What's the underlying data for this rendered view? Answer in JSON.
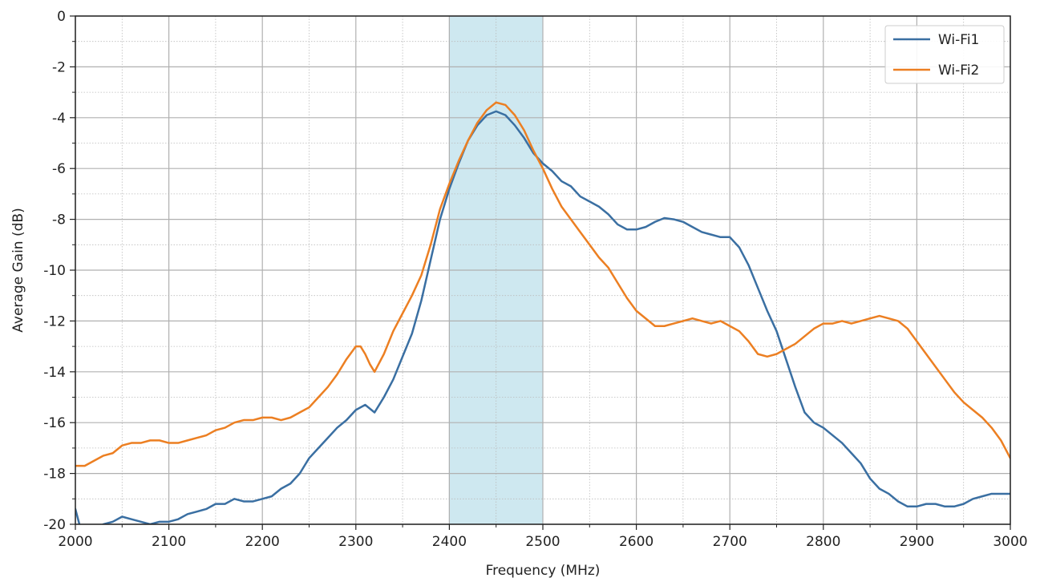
{
  "chart_data": {
    "type": "line",
    "xlabel": "Frequency (MHz)",
    "ylabel": "Average Gain (dB)",
    "xlim": [
      2000,
      3000
    ],
    "ylim": [
      -20,
      0
    ],
    "xticks": [
      "2000",
      "2100",
      "2200",
      "2300",
      "2400",
      "2500",
      "2600",
      "2700",
      "2800",
      "2900",
      "3000"
    ],
    "yticks": [
      "0",
      "-2",
      "-4",
      "-6",
      "-8",
      "-10",
      "-12",
      "-14",
      "-16",
      "-18",
      "-20"
    ],
    "grid": true,
    "minor_grid": true,
    "legend_position": "top-right",
    "shaded_band": {
      "x_start": 2400,
      "x_end": 2500,
      "color": "#add8e6"
    },
    "series": [
      {
        "name": "Wi-Fi1",
        "color": "#3a6fa2",
        "x": [
          2000,
          2005,
          2010,
          2020,
          2030,
          2040,
          2050,
          2060,
          2070,
          2080,
          2090,
          2100,
          2110,
          2120,
          2130,
          2140,
          2150,
          2160,
          2170,
          2180,
          2190,
          2200,
          2210,
          2220,
          2230,
          2240,
          2250,
          2260,
          2270,
          2280,
          2290,
          2300,
          2310,
          2320,
          2330,
          2340,
          2350,
          2360,
          2370,
          2380,
          2390,
          2400,
          2410,
          2420,
          2430,
          2440,
          2450,
          2460,
          2470,
          2480,
          2490,
          2500,
          2510,
          2520,
          2530,
          2540,
          2550,
          2560,
          2570,
          2580,
          2590,
          2600,
          2610,
          2620,
          2630,
          2640,
          2650,
          2660,
          2670,
          2680,
          2690,
          2700,
          2710,
          2720,
          2730,
          2740,
          2750,
          2760,
          2770,
          2780,
          2790,
          2800,
          2810,
          2820,
          2830,
          2840,
          2850,
          2860,
          2870,
          2880,
          2890,
          2900,
          2910,
          2920,
          2930,
          2940,
          2950,
          2960,
          2970,
          2980,
          2990,
          3000
        ],
        "y": [
          -19.4,
          -20.1,
          -20.3,
          -20.2,
          -20.0,
          -19.9,
          -19.7,
          -19.8,
          -19.9,
          -20.0,
          -19.9,
          -19.9,
          -19.8,
          -19.6,
          -19.5,
          -19.4,
          -19.2,
          -19.2,
          -19.0,
          -19.1,
          -19.1,
          -19.0,
          -18.9,
          -18.6,
          -18.4,
          -18.0,
          -17.4,
          -17.0,
          -16.6,
          -16.2,
          -15.9,
          -15.5,
          -15.3,
          -15.6,
          -15.0,
          -14.3,
          -13.4,
          -12.5,
          -11.2,
          -9.6,
          -8.0,
          -6.8,
          -5.8,
          -4.9,
          -4.3,
          -3.9,
          -3.75,
          -3.9,
          -4.3,
          -4.8,
          -5.4,
          -5.8,
          -6.1,
          -6.5,
          -6.7,
          -7.1,
          -7.3,
          -7.5,
          -7.8,
          -8.2,
          -8.4,
          -8.4,
          -8.3,
          -8.1,
          -7.95,
          -8.0,
          -8.1,
          -8.3,
          -8.5,
          -8.6,
          -8.7,
          -8.7,
          -9.1,
          -9.8,
          -10.7,
          -11.6,
          -12.4,
          -13.5,
          -14.6,
          -15.6,
          -16.0,
          -16.2,
          -16.5,
          -16.8,
          -17.2,
          -17.6,
          -18.2,
          -18.6,
          -18.8,
          -19.1,
          -19.3,
          -19.3,
          -19.2,
          -19.2,
          -19.3,
          -19.3,
          -19.2,
          -19.0,
          -18.9,
          -18.8,
          -18.8,
          -18.8
        ]
      },
      {
        "name": "Wi-Fi2",
        "color": "#ec7f22",
        "x": [
          2000,
          2010,
          2020,
          2030,
          2040,
          2050,
          2060,
          2070,
          2080,
          2090,
          2100,
          2110,
          2120,
          2130,
          2140,
          2150,
          2160,
          2170,
          2180,
          2190,
          2200,
          2210,
          2220,
          2230,
          2240,
          2250,
          2260,
          2270,
          2280,
          2290,
          2300,
          2305,
          2310,
          2315,
          2320,
          2330,
          2340,
          2350,
          2360,
          2370,
          2380,
          2390,
          2400,
          2410,
          2420,
          2430,
          2440,
          2450,
          2460,
          2470,
          2480,
          2490,
          2500,
          2510,
          2520,
          2530,
          2540,
          2550,
          2560,
          2570,
          2580,
          2590,
          2600,
          2610,
          2620,
          2630,
          2640,
          2650,
          2660,
          2670,
          2680,
          2690,
          2700,
          2710,
          2720,
          2730,
          2740,
          2750,
          2760,
          2770,
          2780,
          2790,
          2800,
          2810,
          2820,
          2830,
          2840,
          2850,
          2860,
          2870,
          2880,
          2890,
          2900,
          2910,
          2920,
          2930,
          2940,
          2950,
          2960,
          2970,
          2980,
          2990,
          3000
        ],
        "y": [
          -17.7,
          -17.7,
          -17.5,
          -17.3,
          -17.2,
          -16.9,
          -16.8,
          -16.8,
          -16.7,
          -16.7,
          -16.8,
          -16.8,
          -16.7,
          -16.6,
          -16.5,
          -16.3,
          -16.2,
          -16.0,
          -15.9,
          -15.9,
          -15.8,
          -15.8,
          -15.9,
          -15.8,
          -15.6,
          -15.4,
          -15.0,
          -14.6,
          -14.1,
          -13.5,
          -13.0,
          -13.0,
          -13.3,
          -13.7,
          -14.0,
          -13.3,
          -12.4,
          -11.7,
          -11.0,
          -10.2,
          -9.0,
          -7.6,
          -6.6,
          -5.7,
          -4.9,
          -4.2,
          -3.7,
          -3.4,
          -3.5,
          -3.9,
          -4.5,
          -5.3,
          -6.0,
          -6.8,
          -7.5,
          -8.0,
          -8.5,
          -9.0,
          -9.5,
          -9.9,
          -10.5,
          -11.1,
          -11.6,
          -11.9,
          -12.2,
          -12.2,
          -12.1,
          -12.0,
          -11.9,
          -12.0,
          -12.1,
          -12.0,
          -12.2,
          -12.4,
          -12.8,
          -13.3,
          -13.4,
          -13.3,
          -13.1,
          -12.9,
          -12.6,
          -12.3,
          -12.1,
          -12.1,
          -12.0,
          -12.1,
          -12.0,
          -11.9,
          -11.8,
          -11.9,
          -12.0,
          -12.3,
          -12.8,
          -13.3,
          -13.8,
          -14.3,
          -14.8,
          -15.2,
          -15.5,
          -15.8,
          -16.2,
          -16.7,
          -17.4
        ]
      }
    ]
  }
}
